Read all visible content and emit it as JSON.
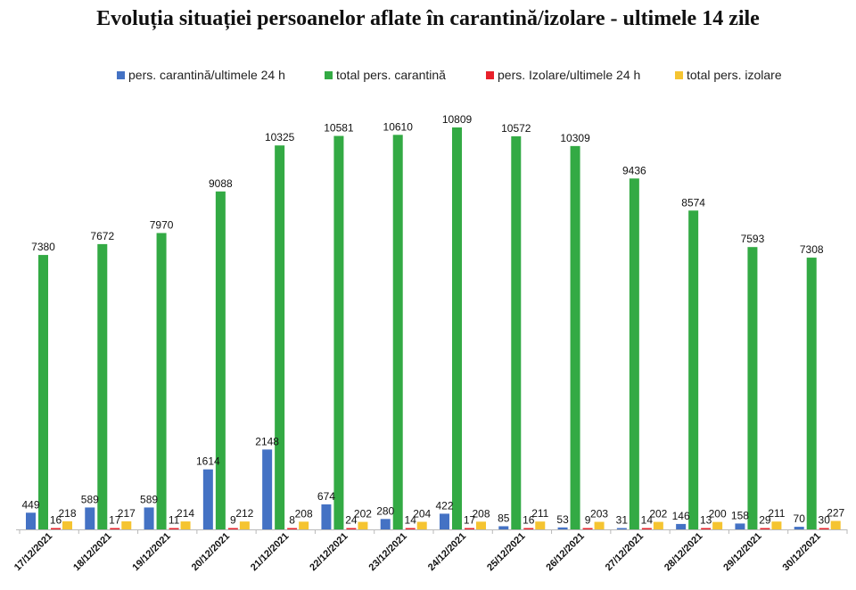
{
  "chart_data": {
    "type": "bar",
    "title": "Evoluția situației persoanelor aflate în carantină/izolare - ultimele 14 zile",
    "categories": [
      "17/12/2021",
      "18/12/2021",
      "19/12/2021",
      "20/12/2021",
      "21/12/2021",
      "22/12/2021",
      "23/12/2021",
      "24/12/2021",
      "25/12/2021",
      "26/12/2021",
      "27/12/2021",
      "28/12/2021",
      "29/12/2021",
      "30/12/2021"
    ],
    "series": [
      {
        "name": "pers. carantină/ultimele 24 h",
        "color": "#4472C4",
        "values": [
          449,
          589,
          589,
          1614,
          2148,
          674,
          280,
          422,
          85,
          53,
          31,
          146,
          158,
          70
        ]
      },
      {
        "name": "total pers. carantină",
        "color": "#33AA44",
        "values": [
          7380,
          7672,
          7970,
          9088,
          10325,
          10581,
          10610,
          10809,
          10572,
          10309,
          9436,
          8574,
          7593,
          7308
        ]
      },
      {
        "name": "pers. Izolare/ultimele 24 h",
        "color": "#E8202A",
        "values": [
          16,
          17,
          11,
          9,
          8,
          24,
          14,
          17,
          16,
          9,
          14,
          13,
          29,
          30
        ]
      },
      {
        "name": "total pers. izolare",
        "color": "#F5C431",
        "values": [
          218,
          217,
          214,
          212,
          208,
          202,
          204,
          208,
          211,
          203,
          202,
          200,
          211,
          227
        ]
      }
    ],
    "ylim": [
      0,
      10809
    ],
    "grid": false,
    "legend_position": "top"
  }
}
